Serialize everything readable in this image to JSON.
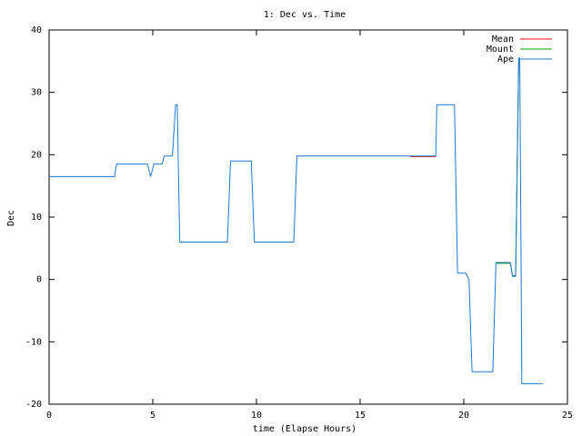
{
  "chart_data": {
    "type": "line",
    "title": "1: Dec vs. Time",
    "x_label": "time (Elapse Hours)",
    "y_label": "Dec",
    "xlim": [
      0,
      25
    ],
    "xticks": [
      0,
      5,
      10,
      15,
      20,
      25
    ],
    "ylim": [
      -20,
      40
    ],
    "yticks": [
      -20,
      -10,
      0,
      10,
      20,
      30,
      40
    ],
    "legend": "top-right",
    "series": [
      {
        "name": "Mean",
        "color": "#ff0000",
        "x": [
          6.3,
          8.6,
          8.6,
          9.9,
          11.8,
          11.8,
          17.4,
          18.65,
          18.65,
          21.55,
          22.25
        ],
        "values": [
          6,
          6,
          null,
          6,
          6,
          null,
          19.7,
          19.7,
          null,
          2.7,
          2.7
        ]
      },
      {
        "name": "Mount",
        "color": "#00a000",
        "x": [
          21.55,
          22.25,
          22.35,
          22.5,
          22.65,
          22.7
        ],
        "values": [
          2.6,
          2.6,
          0.6,
          0.6,
          35.5,
          35.5
        ]
      },
      {
        "name": "Ape",
        "color": "#1e78d0",
        "x": [
          0,
          3.16,
          3.25,
          4.74,
          4.9,
          5.05,
          5.45,
          5.55,
          5.95,
          6.1,
          6.18,
          6.3,
          8.6,
          8.75,
          9.75,
          9.9,
          11.8,
          11.95,
          18.65,
          18.7,
          19.55,
          19.7,
          20.1,
          20.25,
          20.4,
          21.4,
          21.55,
          22.25,
          22.35,
          22.5,
          22.65,
          22.7,
          22.8,
          23.8
        ],
        "values": [
          16.5,
          16.5,
          18.5,
          18.5,
          16.5,
          18.5,
          18.5,
          19.8,
          19.8,
          28,
          28,
          6,
          6,
          19,
          19,
          6,
          6,
          19.8,
          19.8,
          28,
          28,
          1,
          1,
          0,
          -14.8,
          -14.8,
          2.7,
          2.7,
          0.5,
          0.5,
          35.5,
          35.5,
          -16.7,
          -16.7
        ]
      }
    ]
  }
}
